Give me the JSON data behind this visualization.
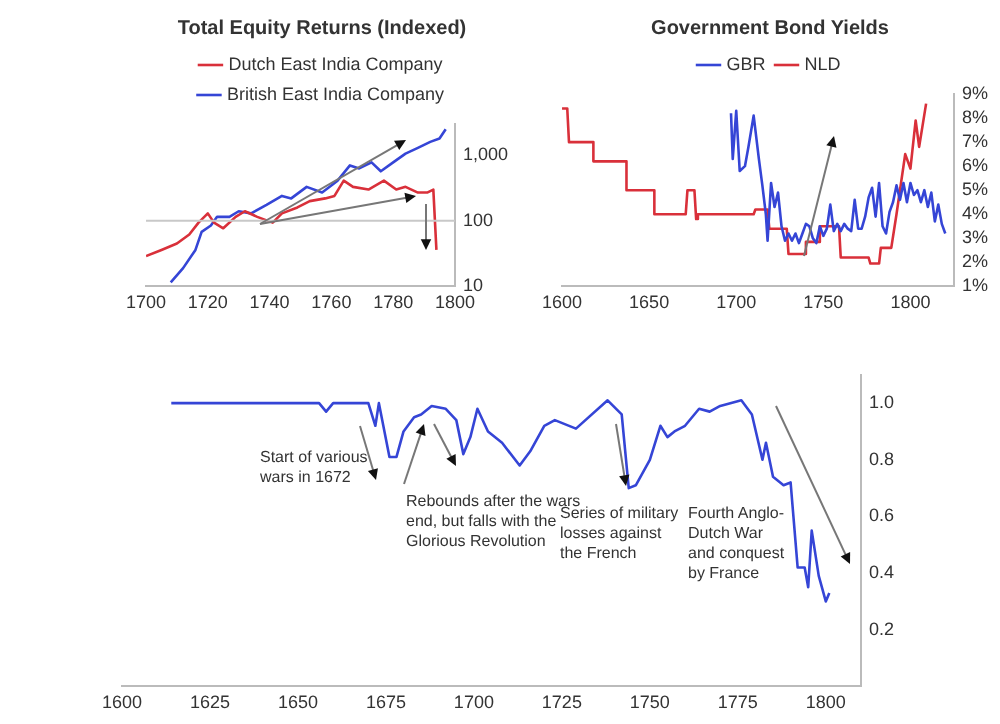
{
  "chart_data": [
    {
      "type": "line",
      "title": "Total Equity Returns (Indexed)",
      "legend": "top",
      "log": "y",
      "marker": "none",
      "line_style": "solid",
      "grid": false,
      "xlim": [
        1700,
        1800
      ],
      "xticks": [
        1700,
        1720,
        1740,
        1760,
        1780,
        1800
      ],
      "ylim": [
        10,
        3000
      ],
      "yticks": [
        10,
        100,
        {
          "value": 1000,
          "label": "1,000"
        }
      ],
      "ref_lines": [
        {
          "axis": "y",
          "value": 100,
          "color": "#c8c8c8"
        }
      ],
      "series": [
        {
          "name": "Dutch East India Company",
          "color": "#d9303a",
          "x": [
            1700,
            1705,
            1710,
            1714,
            1717,
            1720,
            1722,
            1725,
            1729,
            1732,
            1736,
            1741,
            1744,
            1749,
            1753,
            1758,
            1761,
            1764,
            1767,
            1772,
            1777,
            1781,
            1784,
            1788,
            1791,
            1793,
            1794
          ],
          "values": [
            29,
            36,
            45,
            62,
            94,
            130,
            94,
            77,
            115,
            140,
            115,
            94,
            130,
            160,
            200,
            220,
            240,
            410,
            330,
            300,
            410,
            300,
            330,
            270,
            270,
            300,
            36
          ]
        },
        {
          "name": "British East India Company",
          "color": "#3545d6",
          "x": [
            1708,
            1712,
            1716,
            1718,
            1721,
            1723,
            1727,
            1730,
            1734,
            1739,
            1744,
            1747,
            1752,
            1757,
            1762,
            1766,
            1769,
            1773,
            1776,
            1780,
            1784,
            1788,
            1792,
            1795,
            1797
          ],
          "values": [
            11.5,
            19,
            36,
            68,
            85,
            115,
            115,
            140,
            130,
            175,
            240,
            220,
            330,
            270,
            410,
            700,
            630,
            780,
            570,
            780,
            1060,
            1300,
            1600,
            1800,
            2500
          ]
        }
      ]
    },
    {
      "type": "line",
      "title": "Government Bond Yields",
      "legend": "top",
      "marker": "none",
      "line_style": "solid",
      "grid": false,
      "xlim": [
        1600,
        1825
      ],
      "xticks": [
        1600,
        1650,
        1700,
        1750,
        1800
      ],
      "ylim": [
        1,
        9
      ],
      "yticks": [
        {
          "value": 1,
          "label": "1%"
        },
        {
          "value": 2,
          "label": "2%"
        },
        {
          "value": 3,
          "label": "3%"
        },
        {
          "value": 4,
          "label": "4%"
        },
        {
          "value": 5,
          "label": "5%"
        },
        {
          "value": 6,
          "label": "6%"
        },
        {
          "value": 7,
          "label": "7%"
        },
        {
          "value": 8,
          "label": "8%"
        },
        {
          "value": 9,
          "label": "9%"
        }
      ],
      "series": [
        {
          "name": "GBR",
          "color": "#3545d6",
          "x": [
            1697,
            1698,
            1700,
            1702,
            1705,
            1707,
            1710,
            1713,
            1715,
            1717,
            1718,
            1720,
            1722,
            1724,
            1726,
            1728,
            1730,
            1732,
            1734,
            1736,
            1738,
            1740,
            1742,
            1744,
            1746,
            1748,
            1750,
            1752,
            1754,
            1756,
            1758,
            1760,
            1762,
            1764,
            1766,
            1768,
            1770,
            1772,
            1774,
            1776,
            1778,
            1780,
            1782,
            1784,
            1786,
            1788,
            1790,
            1792,
            1794,
            1796,
            1798,
            1800,
            1802,
            1804,
            1806,
            1808,
            1810,
            1812,
            1814,
            1816,
            1818,
            1820
          ],
          "values": [
            8.2,
            6.3,
            8.3,
            5.8,
            6.0,
            6.8,
            8.1,
            6.3,
            5.2,
            4.0,
            2.9,
            5.3,
            4.3,
            4.9,
            3.5,
            2.9,
            3.2,
            2.9,
            3.2,
            2.8,
            3.2,
            3.6,
            3.5,
            3.0,
            2.8,
            3.5,
            3.1,
            3.4,
            4.4,
            3.3,
            3.6,
            3.3,
            3.6,
            3.4,
            3.3,
            4.6,
            3.4,
            3.4,
            3.9,
            4.7,
            5.1,
            3.9,
            5.3,
            3.5,
            3.2,
            4.1,
            4.5,
            5.2,
            4.6,
            5.3,
            4.5,
            5.3,
            4.8,
            5.0,
            4.5,
            5.0,
            4.3,
            4.9,
            3.7,
            4.4,
            3.6,
            3.2
          ]
        },
        {
          "name": "NLD",
          "color": "#d9303a",
          "x": [
            1600,
            1603,
            1604,
            1618,
            1618,
            1637,
            1637,
            1653,
            1653,
            1671,
            1672,
            1676,
            1677,
            1678,
            1710,
            1711,
            1718,
            1719,
            1729,
            1730,
            1739,
            1740,
            1747,
            1748,
            1759,
            1760,
            1776,
            1777,
            1782,
            1783,
            1789,
            1792,
            1797,
            1800,
            1803,
            1805,
            1809
          ],
          "values": [
            8.4,
            8.4,
            7.0,
            7.0,
            6.2,
            6.2,
            5.0,
            5.0,
            4.0,
            4.0,
            5.0,
            5.0,
            3.8,
            4.0,
            4.0,
            4.2,
            4.2,
            3.4,
            3.4,
            2.35,
            2.35,
            2.85,
            2.85,
            3.5,
            3.5,
            2.2,
            2.2,
            1.95,
            1.95,
            2.6,
            2.6,
            4.0,
            6.5,
            5.9,
            7.9,
            6.8,
            8.6
          ]
        }
      ]
    },
    {
      "type": "line",
      "marker": "none",
      "line_style": "solid",
      "grid": false,
      "legend": false,
      "xlim": [
        1600,
        1810
      ],
      "xticks": [
        1600,
        1625,
        1650,
        1675,
        1700,
        1725,
        1750,
        1775,
        1800
      ],
      "ylim": [
        0,
        1.1
      ],
      "yticks": [
        0.2,
        0.4,
        0.6,
        0.8,
        {
          "value": 1,
          "label": "1.0"
        }
      ],
      "annotations": [
        "Start of various wars in 1672",
        "Rebounds after the wars end, but falls with the Glorious Revolution",
        "Series of military losses against the French",
        "Fourth Anglo-Dutch War and conquest by France"
      ],
      "series": [
        {
          "color": "#3545d6",
          "x": [
            1614,
            1656,
            1658,
            1660,
            1670,
            1672,
            1673,
            1676,
            1678,
            1680,
            1683,
            1685,
            1688,
            1692,
            1695,
            1697,
            1699,
            1701,
            1704,
            1708,
            1713,
            1716,
            1720,
            1723,
            1729,
            1738,
            1742,
            1744,
            1746,
            1750,
            1753,
            1755,
            1757,
            1760,
            1764,
            1767,
            1770,
            1776,
            1779,
            1782,
            1783,
            1785,
            1788,
            1790,
            1792,
            1794,
            1795,
            1796,
            1798,
            1800,
            1801
          ],
          "values": [
            1.0,
            1.0,
            0.97,
            1.0,
            1.0,
            0.92,
            1.0,
            0.81,
            0.81,
            0.9,
            0.95,
            0.96,
            0.99,
            0.98,
            0.94,
            0.82,
            0.88,
            0.98,
            0.9,
            0.86,
            0.78,
            0.83,
            0.92,
            0.94,
            0.91,
            1.01,
            0.96,
            0.7,
            0.71,
            0.8,
            0.92,
            0.88,
            0.9,
            0.92,
            0.98,
            0.97,
            0.99,
            1.01,
            0.96,
            0.8,
            0.86,
            0.74,
            0.71,
            0.72,
            0.42,
            0.42,
            0.35,
            0.55,
            0.39,
            0.3,
            0.33
          ]
        }
      ]
    }
  ]
}
